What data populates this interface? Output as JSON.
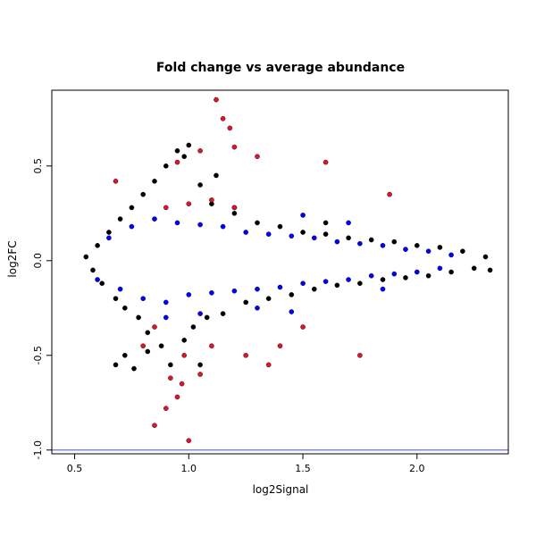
{
  "chart_data": {
    "type": "scatter",
    "title": "Fold change vs average abundance",
    "xlabel": "log2Signal",
    "ylabel": "log2FC",
    "xlim": [
      0.4,
      2.4
    ],
    "ylim": [
      -1.02,
      0.9
    ],
    "x_ticks": [
      0.5,
      1.0,
      1.5,
      2.0
    ],
    "x_tick_labels": [
      "0.5",
      "1.0",
      "1.5",
      "2.0"
    ],
    "y_ticks": [
      -1.0,
      -0.5,
      0.0,
      0.5
    ],
    "y_tick_labels": [
      "-1.0",
      "-0.5",
      "0.0",
      "0.5"
    ],
    "reference_line": {
      "y": -1.0,
      "color": "#6b6bff"
    },
    "grid": false,
    "legend": false,
    "series_colors": {
      "black": "#000000",
      "blue": "#0000ff",
      "red": "#e0142a"
    },
    "series": [
      {
        "color_key": "black",
        "points": [
          [
            0.55,
            0.02
          ],
          [
            0.58,
            -0.05
          ],
          [
            0.6,
            0.08
          ],
          [
            0.62,
            -0.12
          ],
          [
            0.65,
            0.15
          ],
          [
            0.68,
            -0.2
          ],
          [
            0.7,
            0.22
          ],
          [
            0.72,
            -0.25
          ],
          [
            0.75,
            0.28
          ],
          [
            0.78,
            -0.3
          ],
          [
            0.8,
            0.35
          ],
          [
            0.82,
            -0.38
          ],
          [
            0.85,
            0.42
          ],
          [
            0.88,
            -0.45
          ],
          [
            0.9,
            0.5
          ],
          [
            0.92,
            -0.55
          ],
          [
            0.95,
            0.58
          ],
          [
            0.98,
            -0.42
          ],
          [
            1.0,
            0.61
          ],
          [
            1.02,
            -0.35
          ],
          [
            1.05,
            0.4
          ],
          [
            1.08,
            -0.3
          ],
          [
            1.1,
            0.3
          ],
          [
            1.15,
            -0.28
          ],
          [
            1.2,
            0.25
          ],
          [
            1.25,
            -0.22
          ],
          [
            1.3,
            0.2
          ],
          [
            1.35,
            -0.2
          ],
          [
            1.4,
            0.18
          ],
          [
            1.45,
            -0.18
          ],
          [
            1.5,
            0.15
          ],
          [
            1.55,
            -0.15
          ],
          [
            1.6,
            0.14
          ],
          [
            1.65,
            -0.13
          ],
          [
            1.7,
            0.12
          ],
          [
            1.75,
            -0.12
          ],
          [
            1.8,
            0.11
          ],
          [
            1.85,
            -0.1
          ],
          [
            1.9,
            0.1
          ],
          [
            1.95,
            -0.09
          ],
          [
            2.0,
            0.08
          ],
          [
            2.05,
            -0.08
          ],
          [
            2.1,
            0.07
          ],
          [
            2.15,
            -0.06
          ],
          [
            2.2,
            0.05
          ],
          [
            2.25,
            -0.04
          ],
          [
            2.3,
            0.02
          ],
          [
            2.32,
            -0.05
          ],
          [
            0.68,
            -0.55
          ],
          [
            0.72,
            -0.5
          ],
          [
            0.76,
            -0.57
          ],
          [
            0.82,
            -0.48
          ],
          [
            1.05,
            -0.55
          ],
          [
            0.98,
            0.55
          ],
          [
            1.12,
            0.45
          ],
          [
            1.6,
            0.2
          ]
        ]
      },
      {
        "color_key": "blue",
        "points": [
          [
            0.6,
            -0.1
          ],
          [
            0.65,
            0.12
          ],
          [
            0.7,
            -0.15
          ],
          [
            0.75,
            0.18
          ],
          [
            0.8,
            -0.2
          ],
          [
            0.85,
            0.22
          ],
          [
            0.9,
            -0.22
          ],
          [
            0.95,
            0.2
          ],
          [
            1.0,
            -0.18
          ],
          [
            1.05,
            0.19
          ],
          [
            1.1,
            -0.17
          ],
          [
            1.15,
            0.18
          ],
          [
            1.2,
            -0.16
          ],
          [
            1.25,
            0.15
          ],
          [
            1.3,
            -0.15
          ],
          [
            1.35,
            0.14
          ],
          [
            1.4,
            -0.14
          ],
          [
            1.45,
            0.13
          ],
          [
            1.5,
            -0.12
          ],
          [
            1.55,
            0.12
          ],
          [
            1.6,
            -0.11
          ],
          [
            1.65,
            0.1
          ],
          [
            1.7,
            -0.1
          ],
          [
            1.75,
            0.09
          ],
          [
            1.8,
            -0.08
          ],
          [
            1.85,
            0.08
          ],
          [
            1.9,
            -0.07
          ],
          [
            1.95,
            0.06
          ],
          [
            2.0,
            -0.06
          ],
          [
            2.05,
            0.05
          ],
          [
            2.1,
            -0.04
          ],
          [
            2.15,
            0.03
          ],
          [
            0.9,
            -0.3
          ],
          [
            1.05,
            -0.28
          ],
          [
            1.3,
            -0.25
          ],
          [
            1.45,
            -0.27
          ],
          [
            1.2,
            0.28
          ],
          [
            1.5,
            0.24
          ],
          [
            1.7,
            0.2
          ],
          [
            1.85,
            -0.15
          ]
        ]
      },
      {
        "color_key": "red",
        "points": [
          [
            0.85,
            -0.87
          ],
          [
            0.9,
            -0.78
          ],
          [
            0.95,
            -0.72
          ],
          [
            1.0,
            -0.95
          ],
          [
            0.97,
            -0.65
          ],
          [
            0.92,
            -0.62
          ],
          [
            1.05,
            -0.6
          ],
          [
            1.12,
            0.85
          ],
          [
            1.15,
            0.75
          ],
          [
            1.18,
            0.7
          ],
          [
            1.2,
            0.6
          ],
          [
            1.05,
            0.58
          ],
          [
            0.95,
            0.52
          ],
          [
            1.3,
            0.55
          ],
          [
            1.6,
            0.52
          ],
          [
            1.88,
            0.35
          ],
          [
            1.0,
            0.3
          ],
          [
            0.9,
            0.28
          ],
          [
            1.1,
            0.32
          ],
          [
            1.2,
            0.28
          ],
          [
            0.85,
            -0.35
          ],
          [
            1.1,
            -0.45
          ],
          [
            1.25,
            -0.5
          ],
          [
            1.4,
            -0.45
          ],
          [
            1.75,
            -0.5
          ],
          [
            0.8,
            -0.45
          ],
          [
            1.5,
            -0.35
          ],
          [
            1.35,
            -0.55
          ],
          [
            0.68,
            0.42
          ],
          [
            0.98,
            -0.5
          ]
        ]
      }
    ]
  }
}
